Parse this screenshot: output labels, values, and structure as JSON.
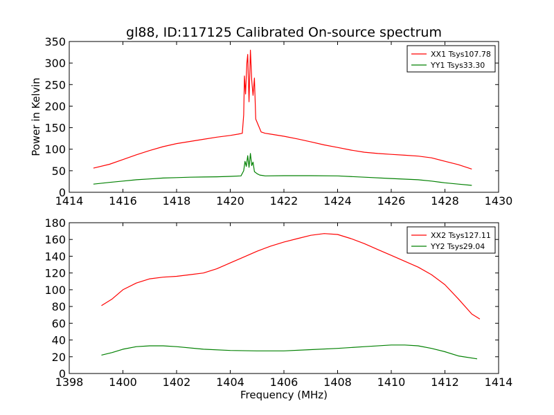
{
  "figure": {
    "title": "gl88, ID:117125 Calibrated On-source spectrum",
    "ylabel": "Power in Kelvin",
    "xlabel": "Frequency (MHz)"
  },
  "chart_data": [
    {
      "type": "line",
      "xlim": [
        1414,
        1430
      ],
      "ylim": [
        0,
        350
      ],
      "xticks": [
        1414,
        1416,
        1418,
        1420,
        1422,
        1424,
        1426,
        1428,
        1430
      ],
      "yticks": [
        0,
        50,
        100,
        150,
        200,
        250,
        300,
        350
      ],
      "grid": false,
      "legend_position": "top-right",
      "series": [
        {
          "name": "XX1 Tsys107.78",
          "color": "#ff0000",
          "points": [
            [
              1414.9,
              56
            ],
            [
              1415.5,
              65
            ],
            [
              1416,
              76
            ],
            [
              1416.5,
              87
            ],
            [
              1417,
              97
            ],
            [
              1417.5,
              106
            ],
            [
              1418,
              113
            ],
            [
              1418.5,
              118
            ],
            [
              1419,
              123
            ],
            [
              1419.5,
              128
            ],
            [
              1420,
              132
            ],
            [
              1420.3,
              135
            ],
            [
              1420.45,
              137
            ],
            [
              1420.5,
              180
            ],
            [
              1420.53,
              270
            ],
            [
              1420.57,
              228
            ],
            [
              1420.62,
              300
            ],
            [
              1420.65,
              320
            ],
            [
              1420.7,
              210
            ],
            [
              1420.75,
              330
            ],
            [
              1420.8,
              260
            ],
            [
              1420.85,
              225
            ],
            [
              1420.9,
              265
            ],
            [
              1420.95,
              170
            ],
            [
              1421.05,
              155
            ],
            [
              1421.15,
              140
            ],
            [
              1421.3,
              137
            ],
            [
              1421.5,
              135
            ],
            [
              1422,
              130
            ],
            [
              1422.5,
              124
            ],
            [
              1423,
              117
            ],
            [
              1423.5,
              110
            ],
            [
              1424,
              104
            ],
            [
              1424.5,
              98
            ],
            [
              1425,
              93
            ],
            [
              1425.5,
              90
            ],
            [
              1426,
              88
            ],
            [
              1426.5,
              86
            ],
            [
              1427,
              84
            ],
            [
              1427.5,
              80
            ],
            [
              1428,
              72
            ],
            [
              1428.5,
              64
            ],
            [
              1429,
              54
            ]
          ]
        },
        {
          "name": "YY1 Tsys33.30",
          "color": "#008000",
          "points": [
            [
              1414.9,
              19
            ],
            [
              1415.5,
              23
            ],
            [
              1416,
              26
            ],
            [
              1416.5,
              29
            ],
            [
              1417,
              31
            ],
            [
              1417.5,
              33
            ],
            [
              1418,
              34
            ],
            [
              1418.5,
              35
            ],
            [
              1419,
              35.5
            ],
            [
              1419.5,
              36
            ],
            [
              1420,
              37
            ],
            [
              1420.4,
              38
            ],
            [
              1420.5,
              50
            ],
            [
              1420.55,
              72
            ],
            [
              1420.6,
              60
            ],
            [
              1420.65,
              85
            ],
            [
              1420.7,
              58
            ],
            [
              1420.75,
              90
            ],
            [
              1420.8,
              62
            ],
            [
              1420.85,
              70
            ],
            [
              1420.9,
              48
            ],
            [
              1421,
              43
            ],
            [
              1421.1,
              40
            ],
            [
              1421.3,
              38
            ],
            [
              1422,
              38.5
            ],
            [
              1423,
              38.5
            ],
            [
              1424,
              38
            ],
            [
              1425,
              35
            ],
            [
              1426,
              32
            ],
            [
              1427,
              29
            ],
            [
              1427.5,
              26
            ],
            [
              1428,
              22
            ],
            [
              1428.5,
              19
            ],
            [
              1429,
              16
            ]
          ]
        }
      ]
    },
    {
      "type": "line",
      "xlim": [
        1398,
        1414
      ],
      "ylim": [
        0,
        180
      ],
      "xticks": [
        1398,
        1400,
        1402,
        1404,
        1406,
        1408,
        1410,
        1412,
        1414
      ],
      "yticks": [
        0,
        20,
        40,
        60,
        80,
        100,
        120,
        140,
        160,
        180
      ],
      "grid": false,
      "legend_position": "top-right",
      "series": [
        {
          "name": "XX2 Tsys127.11",
          "color": "#ff0000",
          "points": [
            [
              1399.2,
              81
            ],
            [
              1399.6,
              89
            ],
            [
              1400,
              100
            ],
            [
              1400.5,
              108
            ],
            [
              1401,
              113
            ],
            [
              1401.5,
              115
            ],
            [
              1402,
              116
            ],
            [
              1402.5,
              118
            ],
            [
              1403,
              120
            ],
            [
              1403.5,
              125
            ],
            [
              1404,
              132
            ],
            [
              1404.5,
              139
            ],
            [
              1405,
              146
            ],
            [
              1405.5,
              152
            ],
            [
              1406,
              157
            ],
            [
              1406.5,
              161
            ],
            [
              1407,
              165
            ],
            [
              1407.5,
              167
            ],
            [
              1408,
              166
            ],
            [
              1408.5,
              161
            ],
            [
              1409,
              155
            ],
            [
              1409.5,
              148
            ],
            [
              1410,
              141
            ],
            [
              1410.5,
              134
            ],
            [
              1411,
              127
            ],
            [
              1411.5,
              118
            ],
            [
              1412,
              106
            ],
            [
              1412.5,
              89
            ],
            [
              1413,
              71
            ],
            [
              1413.3,
              65
            ]
          ]
        },
        {
          "name": "YY2 Tsys29.04",
          "color": "#008000",
          "points": [
            [
              1399.2,
              22
            ],
            [
              1399.6,
              25
            ],
            [
              1400,
              29
            ],
            [
              1400.5,
              32
            ],
            [
              1401,
              33
            ],
            [
              1401.5,
              33
            ],
            [
              1402,
              32
            ],
            [
              1403,
              29
            ],
            [
              1404,
              27.5
            ],
            [
              1405,
              27
            ],
            [
              1406,
              27
            ],
            [
              1407,
              28.5
            ],
            [
              1408,
              30
            ],
            [
              1409,
              32
            ],
            [
              1410,
              34
            ],
            [
              1410.5,
              34
            ],
            [
              1411,
              33
            ],
            [
              1411.5,
              30
            ],
            [
              1412,
              26
            ],
            [
              1412.5,
              21
            ],
            [
              1413.2,
              17.5
            ]
          ]
        }
      ]
    }
  ]
}
